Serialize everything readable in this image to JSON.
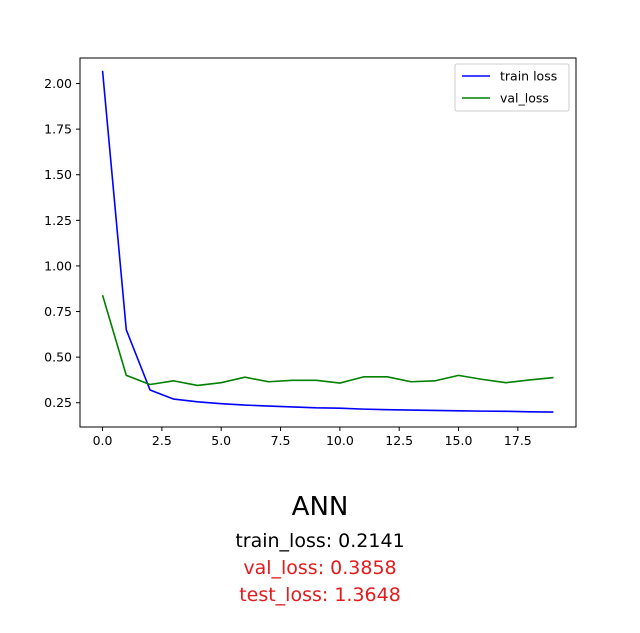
{
  "chart_data": {
    "type": "line",
    "title": "",
    "xlabel": "",
    "ylabel": "",
    "xlim": [
      -0.95,
      19.95
    ],
    "ylim": [
      0.117,
      2.14
    ],
    "grid": false,
    "legend_position": "top-right",
    "xticks": [
      0,
      2.5,
      5,
      7.5,
      10,
      12.5,
      15,
      17.5
    ],
    "xtick_labels": [
      "0.0",
      "2.5",
      "5.0",
      "7.5",
      "10.0",
      "12.5",
      "15.0",
      "17.5"
    ],
    "yticks": [
      0.25,
      0.5,
      0.75,
      1.0,
      1.25,
      1.5,
      1.75,
      2.0
    ],
    "ytick_labels": [
      "0.25",
      "0.50",
      "0.75",
      "1.00",
      "1.25",
      "1.50",
      "1.75",
      "2.00"
    ],
    "x": [
      0,
      1,
      2,
      3,
      4,
      5,
      6,
      7,
      8,
      9,
      10,
      11,
      12,
      13,
      14,
      15,
      16,
      17,
      18,
      19
    ],
    "series": [
      {
        "name": "train loss",
        "color": "#0000ff",
        "values": [
          2.07,
          0.65,
          0.32,
          0.27,
          0.255,
          0.245,
          0.237,
          0.232,
          0.227,
          0.222,
          0.22,
          0.215,
          0.212,
          0.21,
          0.208,
          0.206,
          0.204,
          0.203,
          0.2,
          0.199
        ]
      },
      {
        "name": "val_loss",
        "color": "#008000",
        "values": [
          0.84,
          0.4,
          0.35,
          0.37,
          0.345,
          0.36,
          0.39,
          0.365,
          0.373,
          0.373,
          0.358,
          0.392,
          0.392,
          0.365,
          0.37,
          0.4,
          0.378,
          0.36,
          0.375,
          0.388
        ]
      }
    ]
  },
  "summary": {
    "title": "ANN",
    "train_loss": "train_loss: 0.2141",
    "val_loss": "val_loss: 0.3858",
    "test_loss": "test_loss: 1.3648",
    "highlight_color": "#e41a1c"
  }
}
